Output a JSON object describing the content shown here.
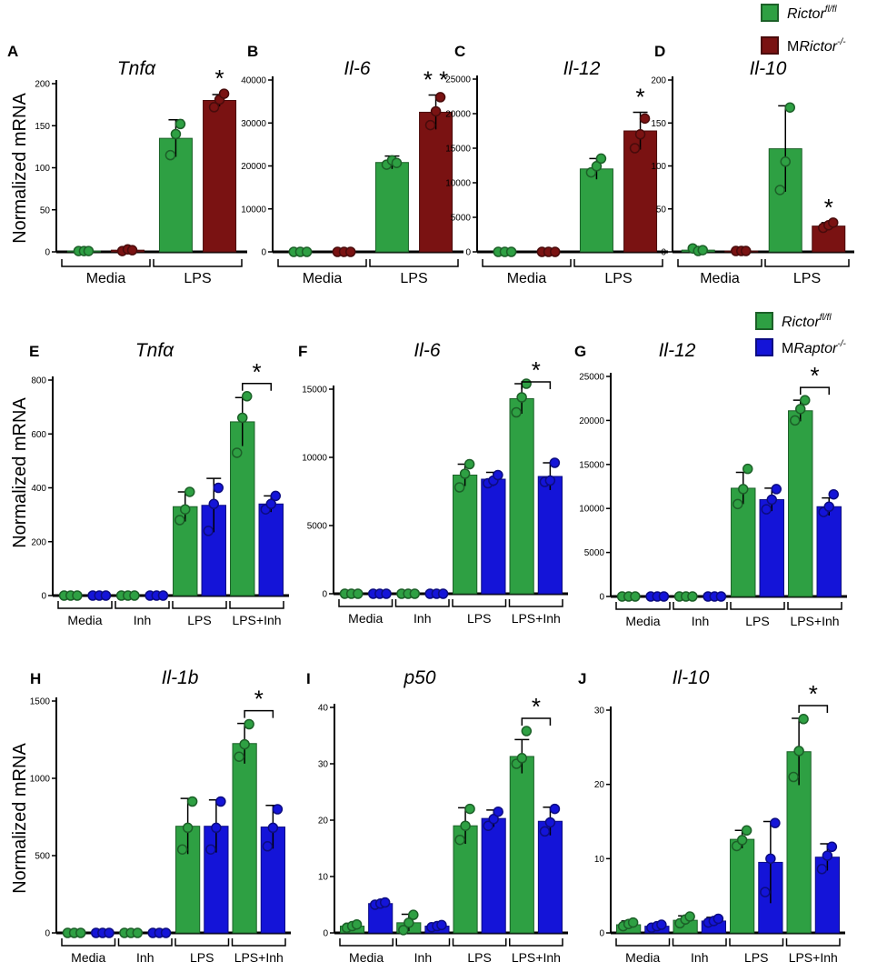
{
  "figure": {
    "ylabel": "Normalized mRNA",
    "legend_top": [
      {
        "label": "Rictor",
        "sup": "fl/fl",
        "italic": true,
        "prefix": "",
        "color": "#2ea043"
      },
      {
        "label": "Rictor",
        "sup": "-/-",
        "italic": true,
        "prefix": "M",
        "color": "#7a1212"
      }
    ],
    "legend_mid": [
      {
        "label": "Rictor",
        "sup": "fl/fl",
        "italic": true,
        "prefix": "",
        "color": "#2ea043"
      },
      {
        "label": "Raptor",
        "sup": "-/-",
        "italic": true,
        "prefix": "M",
        "color": "#1414d8"
      }
    ]
  },
  "colors": {
    "green": "#2ea043",
    "darkred": "#7a1212",
    "blue": "#1414d8",
    "axis": "#000000"
  },
  "chart_data": [
    {
      "id": "A",
      "type": "bar",
      "title": "Tnfα",
      "ylabel": "Normalized mRNA",
      "ylim": [
        0,
        200
      ],
      "yticks": [
        0,
        50,
        100,
        150,
        200
      ],
      "groups": [
        "Media",
        "LPS"
      ],
      "series": [
        {
          "name": "Rictor fl/fl",
          "color": "green",
          "values": [
            1,
            135
          ],
          "err": [
            0,
            22
          ],
          "points": [
            [
              1,
              1,
              1
            ],
            [
              115,
              140,
              152
            ]
          ]
        },
        {
          "name": "MRictor-/-",
          "color": "darkred",
          "values": [
            2,
            180
          ],
          "err": [
            0,
            7
          ],
          "points": [
            [
              1,
              3,
              2
            ],
            [
              172,
              181,
              188
            ]
          ]
        }
      ],
      "significance": [
        "",
        "*"
      ],
      "bracket": false
    },
    {
      "id": "B",
      "type": "bar",
      "title": "Il-6",
      "ylim": [
        0,
        40000
      ],
      "yticks": [
        0,
        10000,
        20000,
        30000,
        40000
      ],
      "groups": [
        "Media",
        "LPS"
      ],
      "series": [
        {
          "name": "Rictor fl/fl",
          "color": "green",
          "values": [
            0,
            20800
          ],
          "err": [
            0,
            1500
          ],
          "points": [
            [
              0,
              0,
              0
            ],
            [
              20300,
              21300,
              20700
            ]
          ]
        },
        {
          "name": "MRictor-/-",
          "color": "darkred",
          "values": [
            0,
            32500
          ],
          "err": [
            0,
            4000
          ],
          "points": [
            [
              0,
              0,
              0
            ],
            [
              29500,
              32700,
              36000
            ]
          ]
        }
      ],
      "significance": [
        "",
        "* *"
      ],
      "bracket": false
    },
    {
      "id": "C",
      "type": "bar",
      "title": "Il-12",
      "ylim": [
        0,
        25000
      ],
      "yticks": [
        0,
        5000,
        10000,
        15000,
        20000,
        25000
      ],
      "groups": [
        "Media",
        "LPS"
      ],
      "series": [
        {
          "name": "Rictor fl/fl",
          "color": "green",
          "values": [
            0,
            12000
          ],
          "err": [
            0,
            1500
          ],
          "points": [
            [
              0,
              0,
              0
            ],
            [
              11500,
              12400,
              13500
            ]
          ]
        },
        {
          "name": "MRictor-/-",
          "color": "darkred",
          "values": [
            0,
            17500
          ],
          "err": [
            0,
            2700
          ],
          "points": [
            [
              0,
              0,
              0
            ],
            [
              15000,
              17000,
              19300
            ]
          ]
        }
      ],
      "significance": [
        "",
        "*"
      ],
      "bracket": false
    },
    {
      "id": "D",
      "type": "bar",
      "title": "Il-10",
      "ylim": [
        0,
        200
      ],
      "yticks": [
        0,
        50,
        100,
        150,
        200
      ],
      "groups": [
        "Media",
        "LPS"
      ],
      "series": [
        {
          "name": "Rictor fl/fl",
          "color": "green",
          "values": [
            2,
            120
          ],
          "err": [
            2,
            50
          ],
          "points": [
            [
              4,
              1,
              2
            ],
            [
              72,
              105,
              168
            ]
          ]
        },
        {
          "name": "MRictor-/-",
          "color": "darkred",
          "values": [
            1,
            30
          ],
          "err": [
            0,
            4
          ],
          "points": [
            [
              1,
              1,
              1
            ],
            [
              28,
              31,
              34
            ]
          ]
        }
      ],
      "significance": [
        "",
        "*"
      ],
      "bracket": false
    },
    {
      "id": "E",
      "type": "bar",
      "title": "Tnfα",
      "ylabel": "Normalized mRNA",
      "ylim": [
        0,
        800
      ],
      "yticks": [
        0,
        200,
        400,
        600,
        800
      ],
      "groups": [
        "Media",
        "Inh",
        "LPS",
        "LPS+Inh"
      ],
      "series": [
        {
          "name": "Rictor fl/fl",
          "color": "green",
          "values": [
            0,
            0,
            330,
            645
          ],
          "err": [
            0,
            0,
            55,
            90
          ],
          "points": [
            [
              0,
              0,
              0
            ],
            [
              0,
              0,
              0
            ],
            [
              280,
              320,
              385
            ],
            [
              530,
              660,
              740
            ]
          ]
        },
        {
          "name": "MRaptor-/-",
          "color": "blue",
          "values": [
            0,
            0,
            335,
            340
          ],
          "err": [
            0,
            0,
            100,
            30
          ],
          "points": [
            [
              0,
              0,
              0
            ],
            [
              0,
              0,
              0
            ],
            [
              240,
              340,
              400
            ],
            [
              320,
              340,
              370
            ]
          ]
        }
      ],
      "significance": [
        "",
        "",
        "",
        "*"
      ],
      "bracket": true
    },
    {
      "id": "F",
      "type": "bar",
      "title": "Il-6",
      "ylim": [
        0,
        15000
      ],
      "yticks": [
        0,
        5000,
        10000,
        15000
      ],
      "groups": [
        "Media",
        "Inh",
        "LPS",
        "LPS+Inh"
      ],
      "series": [
        {
          "name": "Rictor fl/fl",
          "color": "green",
          "values": [
            0,
            0,
            8700,
            14300
          ],
          "err": [
            0,
            0,
            800,
            1100
          ],
          "points": [
            [
              0,
              0,
              0
            ],
            [
              0,
              0,
              0
            ],
            [
              7800,
              8800,
              9500
            ],
            [
              13300,
              14400,
              15400
            ]
          ]
        },
        {
          "name": "MRaptor-/-",
          "color": "blue",
          "values": [
            0,
            0,
            8400,
            8600
          ],
          "err": [
            0,
            0,
            500,
            1000
          ],
          "points": [
            [
              0,
              0,
              0
            ],
            [
              0,
              0,
              0
            ],
            [
              8100,
              8300,
              8700
            ],
            [
              8200,
              8300,
              9600
            ]
          ]
        }
      ],
      "significance": [
        "",
        "",
        "",
        "*"
      ],
      "bracket": true
    },
    {
      "id": "G",
      "type": "bar",
      "title": "Il-12",
      "ylim": [
        0,
        25000
      ],
      "yticks": [
        0,
        5000,
        10000,
        15000,
        20000,
        25000
      ],
      "groups": [
        "Media",
        "Inh",
        "LPS",
        "LPS+Inh"
      ],
      "series": [
        {
          "name": "Rictor fl/fl",
          "color": "green",
          "values": [
            0,
            0,
            12300,
            21100
          ],
          "err": [
            0,
            0,
            1800,
            1200
          ],
          "points": [
            [
              0,
              0,
              0
            ],
            [
              0,
              0,
              0
            ],
            [
              10500,
              12200,
              14500
            ],
            [
              20000,
              21300,
              22300
            ]
          ]
        },
        {
          "name": "MRaptor-/-",
          "color": "blue",
          "values": [
            0,
            0,
            11000,
            10200
          ],
          "err": [
            0,
            0,
            1300,
            1000
          ],
          "points": [
            [
              0,
              0,
              0
            ],
            [
              0,
              0,
              0
            ],
            [
              9900,
              11000,
              12200
            ],
            [
              9600,
              10200,
              11600
            ]
          ]
        }
      ],
      "significance": [
        "",
        "",
        "",
        "*"
      ],
      "bracket": true
    },
    {
      "id": "H",
      "type": "bar",
      "title": "Il-1b",
      "ylabel": "Normalized mRNA",
      "ylim": [
        0,
        1500
      ],
      "yticks": [
        0,
        500,
        1000,
        1500
      ],
      "groups": [
        "Media",
        "Inh",
        "LPS",
        "LPS+Inh"
      ],
      "series": [
        {
          "name": "Rictor fl/fl",
          "color": "green",
          "values": [
            0,
            0,
            690,
            1225
          ],
          "err": [
            0,
            0,
            180,
            130
          ],
          "points": [
            [
              0,
              0,
              0
            ],
            [
              0,
              0,
              0
            ],
            [
              540,
              680,
              850
            ],
            [
              1140,
              1220,
              1350
            ]
          ]
        },
        {
          "name": "MRaptor-/-",
          "color": "blue",
          "values": [
            0,
            0,
            690,
            685
          ],
          "err": [
            0,
            0,
            170,
            140
          ],
          "points": [
            [
              0,
              0,
              0
            ],
            [
              0,
              0,
              0
            ],
            [
              540,
              680,
              850
            ],
            [
              560,
              680,
              800
            ]
          ]
        }
      ],
      "significance": [
        "",
        "",
        "",
        "*"
      ],
      "bracket": true
    },
    {
      "id": "I",
      "type": "bar",
      "title": "p50",
      "ylim": [
        0,
        40
      ],
      "yticks": [
        0,
        10,
        20,
        30,
        40
      ],
      "groups": [
        "Media",
        "Inh",
        "LPS",
        "LPS+Inh"
      ],
      "series": [
        {
          "name": "Rictor fl/fl",
          "color": "green",
          "values": [
            1.2,
            1.8,
            19,
            31.3
          ],
          "err": [
            0.5,
            1.5,
            3.2,
            3
          ],
          "points": [
            [
              0.9,
              1.2,
              1.5
            ],
            [
              0.5,
              1.8,
              3.2
            ],
            [
              16.5,
              19,
              22
            ],
            [
              30,
              31,
              35.8
            ]
          ]
        },
        {
          "name": "MRaptor-/-",
          "color": "blue",
          "values": [
            5.2,
            1.2,
            20.3,
            19.8
          ],
          "err": [
            0.3,
            0.4,
            1.5,
            2.5
          ],
          "points": [
            [
              5,
              5.2,
              5.4
            ],
            [
              1,
              1.2,
              1.4
            ],
            [
              19,
              20.2,
              21.5
            ],
            [
              18,
              19.6,
              22
            ]
          ]
        }
      ],
      "significance": [
        "",
        "",
        "",
        "*"
      ],
      "bracket": true
    },
    {
      "id": "J",
      "type": "bar",
      "title": "Il-10",
      "ylim": [
        0,
        30
      ],
      "yticks": [
        0,
        10,
        20,
        30
      ],
      "groups": [
        "Media",
        "Inh",
        "LPS",
        "LPS+Inh"
      ],
      "series": [
        {
          "name": "Rictor fl/fl",
          "color": "green",
          "values": [
            1.1,
            1.7,
            12.6,
            24.4
          ],
          "err": [
            0.5,
            0.6,
            1.2,
            4.5
          ],
          "points": [
            [
              0.9,
              1.2,
              1.4
            ],
            [
              1.3,
              1.8,
              2.2
            ],
            [
              11.7,
              12.5,
              13.8
            ],
            [
              21,
              24.5,
              28.8
            ]
          ]
        },
        {
          "name": "MRaptor-/-",
          "color": "blue",
          "values": [
            0.9,
            1.6,
            9.5,
            10.2
          ],
          "err": [
            0.3,
            0.5,
            5.5,
            1.8
          ],
          "points": [
            [
              0.7,
              0.9,
              1.1
            ],
            [
              1.4,
              1.6,
              1.9
            ],
            [
              5.5,
              10,
              14.8
            ],
            [
              8.6,
              10.4,
              11.6
            ]
          ]
        }
      ],
      "significance": [
        "",
        "",
        "",
        "*"
      ],
      "bracket": true
    }
  ]
}
